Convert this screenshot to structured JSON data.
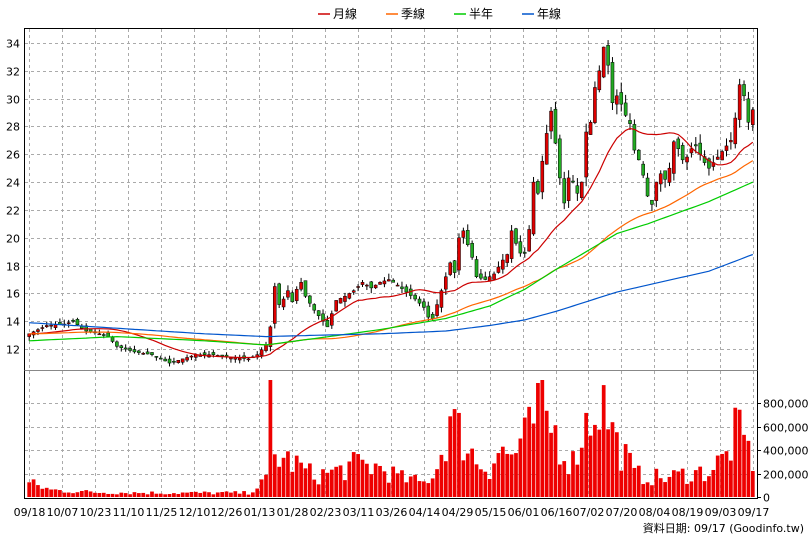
{
  "legend": [
    {
      "label": "月線",
      "color": "#cc0000"
    },
    {
      "label": "季線",
      "color": "#ff6600"
    },
    {
      "label": "半年",
      "color": "#00cc00"
    },
    {
      "label": "年線",
      "color": "#0055cc"
    }
  ],
  "footer_credit": "資料日期: 09/17  (Goodinfo.tw)",
  "chart_data": {
    "type": "candlestick-with-volume",
    "title": "",
    "x_tick_labels": [
      "09/18",
      "10/07",
      "10/23",
      "11/10",
      "11/25",
      "12/10",
      "12/26",
      "01/13",
      "01/28",
      "02/23",
      "03/11",
      "03/26",
      "04/14",
      "04/29",
      "05/15",
      "06/01",
      "06/16",
      "07/02",
      "07/20",
      "08/04",
      "08/19",
      "09/03",
      "09/17"
    ],
    "price_axis": {
      "ylim": [
        10.5,
        35
      ],
      "ticks": [
        12,
        14,
        16,
        18,
        20,
        22,
        24,
        26,
        28,
        30,
        32,
        34
      ],
      "grid": true
    },
    "volume_axis": {
      "ylim": [
        0,
        1000000
      ],
      "ticks": [
        0,
        200000,
        400000,
        600000,
        800000
      ],
      "tick_labels": [
        "0",
        "200,000",
        "400,000",
        "600,000",
        "800,000"
      ]
    },
    "up_color": "#dd0000",
    "down_color": "#22aa22",
    "volume_color": "#ee0000",
    "price_keypoints": [
      [
        0,
        13.1
      ],
      [
        4,
        13.7
      ],
      [
        8,
        13.8
      ],
      [
        10,
        14.0
      ],
      [
        12,
        13.5
      ],
      [
        13,
        13.3
      ],
      [
        16,
        13.1
      ],
      [
        18,
        12.9
      ],
      [
        20,
        12.2
      ],
      [
        24,
        11.8
      ],
      [
        28,
        11.6
      ],
      [
        30,
        11.3
      ],
      [
        32,
        11.0
      ],
      [
        35,
        11.3
      ],
      [
        38,
        11.6
      ],
      [
        42,
        11.6
      ],
      [
        46,
        11.4
      ],
      [
        50,
        11.3
      ],
      [
        52,
        11.6
      ],
      [
        54,
        12.3
      ],
      [
        55,
        13.6
      ],
      [
        56,
        16.5
      ],
      [
        57,
        15.2
      ],
      [
        58,
        15.6
      ],
      [
        59,
        16.2
      ],
      [
        60,
        15.4
      ],
      [
        61,
        16.3
      ],
      [
        62,
        16.8
      ],
      [
        63,
        15.8
      ],
      [
        65,
        14.8
      ],
      [
        67,
        14.0
      ],
      [
        68,
        13.6
      ],
      [
        70,
        15.5
      ],
      [
        72,
        15.8
      ],
      [
        74,
        16.2
      ],
      [
        76,
        16.8
      ],
      [
        78,
        16.4
      ],
      [
        80,
        16.8
      ],
      [
        82,
        17.0
      ],
      [
        84,
        16.6
      ],
      [
        86,
        16.1
      ],
      [
        88,
        15.6
      ],
      [
        90,
        15.0
      ],
      [
        91,
        14.3
      ],
      [
        92,
        14.2
      ],
      [
        94,
        16.2
      ],
      [
        96,
        18.2
      ],
      [
        97,
        17.5
      ],
      [
        98,
        20.0
      ],
      [
        99,
        20.5
      ],
      [
        100,
        19.5
      ],
      [
        101,
        18.6
      ],
      [
        102,
        17.2
      ],
      [
        104,
        17.0
      ],
      [
        106,
        17.4
      ],
      [
        108,
        18.4
      ],
      [
        109,
        18.8
      ],
      [
        110,
        20.5
      ],
      [
        111,
        19.6
      ],
      [
        112,
        18.9
      ],
      [
        113,
        18.9
      ],
      [
        114,
        20.6
      ],
      [
        115,
        24.0
      ],
      [
        116,
        23.2
      ],
      [
        117,
        25.5
      ],
      [
        118,
        27.5
      ],
      [
        119,
        29.1
      ],
      [
        120,
        26.8
      ],
      [
        121,
        24.3
      ],
      [
        122,
        22.5
      ],
      [
        123,
        24.3
      ],
      [
        124,
        24.0
      ],
      [
        125,
        23.2
      ],
      [
        126,
        24.0
      ],
      [
        127,
        27.6
      ],
      [
        128,
        28.3
      ],
      [
        129,
        30.8
      ],
      [
        130,
        32.0
      ],
      [
        131,
        33.7
      ],
      [
        132,
        32.4
      ],
      [
        133,
        29.7
      ],
      [
        134,
        30.2
      ],
      [
        135,
        29.6
      ],
      [
        136,
        28.8
      ],
      [
        137,
        28.2
      ],
      [
        138,
        26.3
      ],
      [
        139,
        25.6
      ],
      [
        140,
        24.5
      ],
      [
        141,
        23.0
      ],
      [
        142,
        22.4
      ],
      [
        143,
        24.0
      ],
      [
        144,
        24.6
      ],
      [
        145,
        24.2
      ],
      [
        146,
        25.0
      ],
      [
        147,
        26.9
      ],
      [
        148,
        26.4
      ],
      [
        149,
        25.6
      ],
      [
        150,
        25.8
      ],
      [
        151,
        26.4
      ],
      [
        152,
        26.6
      ],
      [
        153,
        26.0
      ],
      [
        154,
        25.4
      ],
      [
        155,
        25.0
      ],
      [
        156,
        25.4
      ],
      [
        157,
        25.8
      ],
      [
        158,
        26.2
      ],
      [
        159,
        26.6
      ],
      [
        160,
        27.0
      ],
      [
        161,
        28.6
      ],
      [
        162,
        31.0
      ],
      [
        163,
        30.2
      ],
      [
        164,
        28.3
      ],
      [
        165,
        29.2
      ]
    ],
    "volume_keypoints": [
      [
        0,
        120000
      ],
      [
        5,
        60000
      ],
      [
        15,
        40000
      ],
      [
        30,
        35000
      ],
      [
        50,
        35000
      ],
      [
        54,
        140000
      ],
      [
        55,
        900000
      ],
      [
        56,
        350000
      ],
      [
        60,
        300000
      ],
      [
        65,
        180000
      ],
      [
        70,
        220000
      ],
      [
        75,
        280000
      ],
      [
        80,
        250000
      ],
      [
        85,
        160000
      ],
      [
        90,
        120000
      ],
      [
        93,
        250000
      ],
      [
        96,
        650000
      ],
      [
        98,
        550000
      ],
      [
        100,
        450000
      ],
      [
        102,
        300000
      ],
      [
        105,
        250000
      ],
      [
        107,
        400000
      ],
      [
        110,
        350000
      ],
      [
        114,
        550000
      ],
      [
        116,
        750000
      ],
      [
        118,
        650000
      ],
      [
        120,
        550000
      ],
      [
        122,
        380000
      ],
      [
        124,
        300000
      ],
      [
        126,
        550000
      ],
      [
        128,
        700000
      ],
      [
        130,
        850000
      ],
      [
        132,
        700000
      ],
      [
        134,
        450000
      ],
      [
        136,
        350000
      ],
      [
        138,
        200000
      ],
      [
        140,
        180000
      ],
      [
        145,
        160000
      ],
      [
        150,
        200000
      ],
      [
        155,
        220000
      ],
      [
        159,
        350000
      ],
      [
        161,
        550000
      ],
      [
        163,
        480000
      ],
      [
        165,
        320000
      ]
    ],
    "moving_averages": [
      {
        "name": "月線",
        "color": "#cc0000",
        "window": 20
      },
      {
        "name": "季線",
        "color": "#ff6600",
        "window": 60
      },
      {
        "name": "半年",
        "color": "#00cc00",
        "points": [
          [
            0,
            12.6
          ],
          [
            20,
            12.9
          ],
          [
            40,
            12.6
          ],
          [
            54,
            12.3
          ],
          [
            66,
            12.8
          ],
          [
            80,
            13.4
          ],
          [
            95,
            14.2
          ],
          [
            105,
            15.1
          ],
          [
            113,
            16.3
          ],
          [
            120,
            17.7
          ],
          [
            127,
            19.0
          ],
          [
            134,
            20.3
          ],
          [
            141,
            21.0
          ],
          [
            148,
            21.8
          ],
          [
            155,
            22.6
          ],
          [
            160,
            23.3
          ],
          [
            165,
            24.0
          ]
        ]
      },
      {
        "name": "年線",
        "color": "#0055cc",
        "points": [
          [
            0,
            13.9
          ],
          [
            20,
            13.5
          ],
          [
            40,
            13.1
          ],
          [
            54,
            12.9
          ],
          [
            66,
            13.0
          ],
          [
            80,
            13.1
          ],
          [
            95,
            13.3
          ],
          [
            105,
            13.7
          ],
          [
            113,
            14.1
          ],
          [
            120,
            14.7
          ],
          [
            127,
            15.4
          ],
          [
            134,
            16.1
          ],
          [
            141,
            16.6
          ],
          [
            148,
            17.1
          ],
          [
            155,
            17.6
          ],
          [
            160,
            18.2
          ],
          [
            165,
            18.8
          ]
        ]
      }
    ]
  }
}
